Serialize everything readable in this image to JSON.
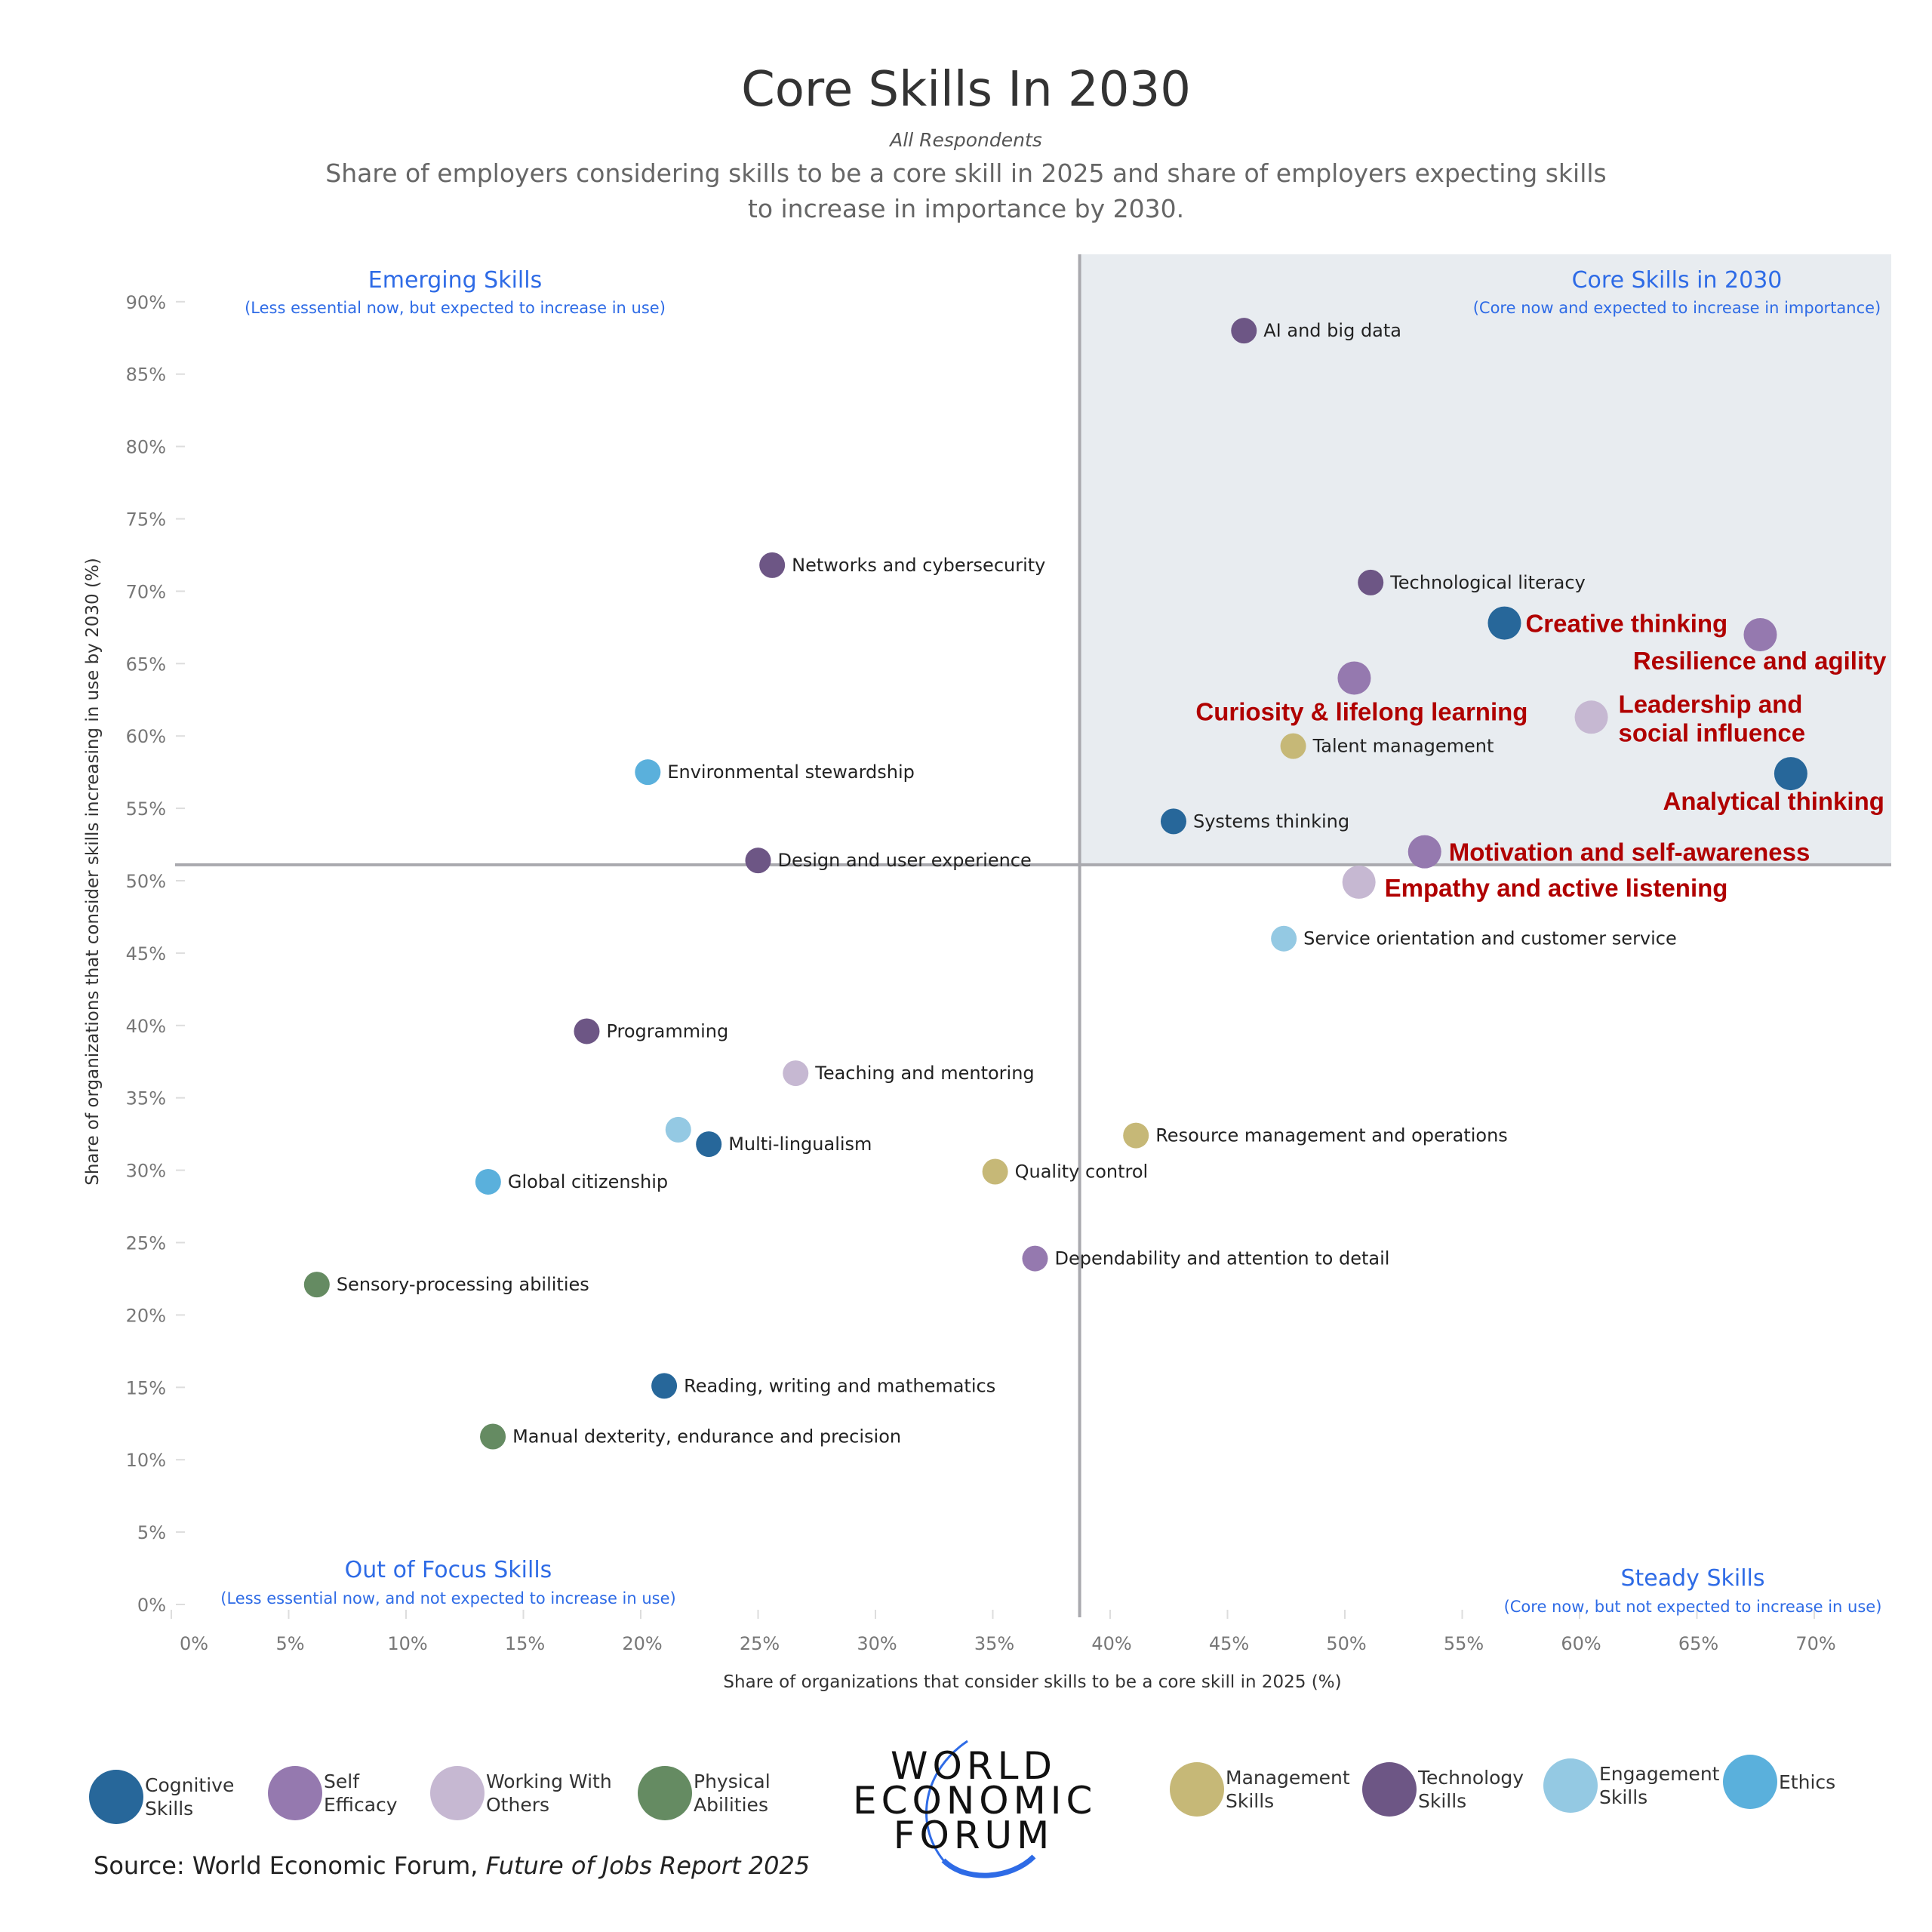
{
  "header": {
    "title": "Core Skills In 2030",
    "respondents": "All Respondents",
    "description": "Share of employers considering skills to be a core skill in 2025 and share of employers expecting skills to increase in importance by 2030."
  },
  "quadrants": {
    "emerging": {
      "title": "Emerging Skills",
      "subtitle": "(Less essential now, but expected to increase in use)"
    },
    "core": {
      "title": "Core Skills in 2030",
      "subtitle": "(Core now and expected to increase in importance)"
    },
    "out_of_focus": {
      "title": "Out of Focus Skills",
      "subtitle": "(Less essential now, and not expected to increase in use)"
    },
    "steady": {
      "title": "Steady Skills",
      "subtitle": "(Core now, but not expected to increase in use)"
    }
  },
  "legend": [
    {
      "key": "cognitive",
      "label": "Cognitive\nSkills",
      "color": "#27679a"
    },
    {
      "key": "self_efficacy",
      "label": "Self\nEfficacy",
      "color": "#9579af"
    },
    {
      "key": "working_with_others",
      "label": "Working With\nOthers",
      "color": "#c6b8d2"
    },
    {
      "key": "physical",
      "label": "Physical\nAbilities",
      "color": "#658b62"
    },
    {
      "key": "management",
      "label": "Management\nSkills",
      "color": "#c6b877"
    },
    {
      "key": "technology",
      "label": "Technology\nSkills",
      "color": "#6d5685"
    },
    {
      "key": "engagement",
      "label": "Engagement\nSkills",
      "color": "#94c9e3"
    },
    {
      "key": "ethics",
      "label": "Ethics",
      "color": "#5ab0dc"
    }
  ],
  "logo": {
    "lines": [
      "WORLD",
      "ECONOMIC",
      "FORUM"
    ]
  },
  "source": {
    "prefix": "Source: World Economic Forum, ",
    "report": "Future of Jobs Report 2025"
  },
  "chart_data": {
    "type": "scatter",
    "title": "Core Skills In 2030",
    "subtitle": "All Respondents",
    "xlabel": "Share of organizations that consider skills to be a core skill in 2025 (%)",
    "ylabel": "Share of organizations that consider skills increasing in use by 2030 (%)",
    "xlim": [
      0,
      72
    ],
    "ylim": [
      0,
      90
    ],
    "x_ticks": [
      "0%",
      "5%",
      "10%",
      "15%",
      "20%",
      "25%",
      "30%",
      "35%",
      "40%",
      "45%",
      "50%",
      "55%",
      "60%",
      "65%",
      "70%"
    ],
    "y_ticks": [
      "0%",
      "5%",
      "10%",
      "15%",
      "20%",
      "25%",
      "30%",
      "35%",
      "40%",
      "45%",
      "50%",
      "55%",
      "60%",
      "65%",
      "70%",
      "75%",
      "80%",
      "85%",
      "90%"
    ],
    "x_tick_values": [
      0,
      5,
      10,
      15,
      20,
      25,
      30,
      35,
      40,
      45,
      50,
      55,
      60,
      65,
      70
    ],
    "y_tick_values": [
      0,
      5,
      10,
      15,
      20,
      25,
      30,
      35,
      40,
      45,
      50,
      55,
      60,
      65,
      70,
      75,
      80,
      85,
      90
    ],
    "x_divider": 38.7,
    "y_divider": 51.1,
    "grid": false,
    "legend_position": "bottom",
    "points": [
      {
        "label": "AI and big data",
        "x": 45.7,
        "y": 88.0,
        "category": "technology",
        "highlight": false
      },
      {
        "label": "Networks and cybersecurity",
        "x": 25.6,
        "y": 71.8,
        "category": "technology",
        "highlight": false
      },
      {
        "label": "Technological literacy",
        "x": 51.1,
        "y": 70.6,
        "category": "technology",
        "highlight": false
      },
      {
        "label": "Creative thinking",
        "x": 56.8,
        "y": 67.8,
        "category": "cognitive",
        "highlight": true
      },
      {
        "label": "Resilience and agility",
        "x": 67.7,
        "y": 67.0,
        "category": "self_efficacy",
        "highlight": true
      },
      {
        "label": "Curiosity & lifelong learning",
        "x": 50.4,
        "y": 64.0,
        "category": "self_efficacy",
        "highlight": true
      },
      {
        "label": "Leadership and\nsocial influence",
        "x": 60.5,
        "y": 61.3,
        "category": "working_with_others",
        "highlight": true
      },
      {
        "label": "Talent management",
        "x": 47.8,
        "y": 59.3,
        "category": "management",
        "highlight": false
      },
      {
        "label": "Analytical thinking",
        "x": 69.0,
        "y": 57.4,
        "category": "cognitive",
        "highlight": true
      },
      {
        "label": "Environmental stewardship",
        "x": 20.3,
        "y": 57.5,
        "category": "ethics",
        "highlight": false
      },
      {
        "label": "Systems thinking",
        "x": 42.7,
        "y": 54.1,
        "category": "cognitive",
        "highlight": false
      },
      {
        "label": "Motivation and self-awareness",
        "x": 53.4,
        "y": 52.0,
        "category": "self_efficacy",
        "highlight": true
      },
      {
        "label": "Design and user experience",
        "x": 25.0,
        "y": 51.4,
        "category": "technology",
        "highlight": false
      },
      {
        "label": "Empathy and active listening",
        "x": 50.6,
        "y": 49.9,
        "category": "working_with_others",
        "highlight": true
      },
      {
        "label": "Service orientation and customer service",
        "x": 47.4,
        "y": 46.0,
        "category": "engagement",
        "highlight": false
      },
      {
        "label": "Programming",
        "x": 17.7,
        "y": 39.6,
        "category": "technology",
        "highlight": false
      },
      {
        "label": "Teaching and mentoring",
        "x": 26.6,
        "y": 36.7,
        "category": "working_with_others",
        "highlight": false
      },
      {
        "label": "",
        "x": 21.6,
        "y": 32.8,
        "category": "engagement",
        "highlight": false
      },
      {
        "label": "Multi-lingualism",
        "x": 22.9,
        "y": 31.8,
        "category": "cognitive",
        "highlight": false
      },
      {
        "label": "Resource management and operations",
        "x": 41.1,
        "y": 32.4,
        "category": "management",
        "highlight": false
      },
      {
        "label": "Quality control",
        "x": 35.1,
        "y": 29.9,
        "category": "management",
        "highlight": false
      },
      {
        "label": "Global citizenship",
        "x": 13.5,
        "y": 29.2,
        "category": "ethics",
        "highlight": false
      },
      {
        "label": "Dependability and attention to detail",
        "x": 36.8,
        "y": 23.9,
        "category": "self_efficacy",
        "highlight": false
      },
      {
        "label": "Sensory-processing abilities",
        "x": 6.2,
        "y": 22.1,
        "category": "physical",
        "highlight": false
      },
      {
        "label": "Reading, writing and mathematics",
        "x": 21.0,
        "y": 15.1,
        "category": "cognitive",
        "highlight": false
      },
      {
        "label": "Manual dexterity, endurance and precision",
        "x": 13.7,
        "y": 11.6,
        "category": "physical",
        "highlight": false
      }
    ]
  }
}
